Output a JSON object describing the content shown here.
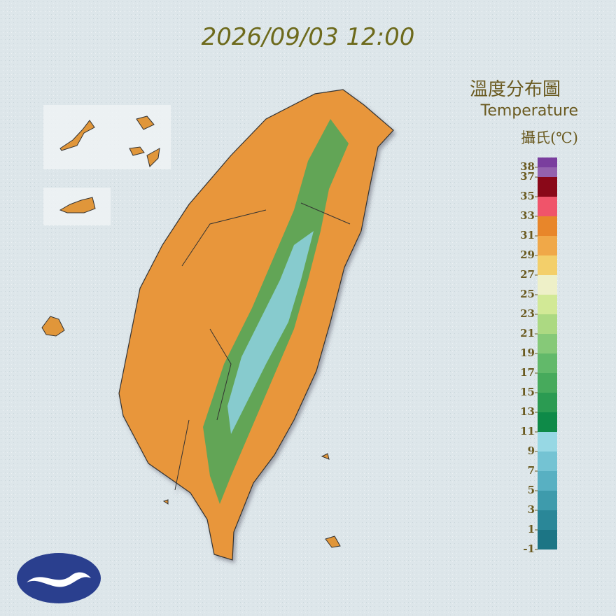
{
  "timestamp": "2026/09/03 12:00",
  "legend": {
    "title": "溫度分布圖",
    "subtitle": "Temperature",
    "unit": "攝氏(℃)",
    "range": [
      -1,
      39
    ],
    "ticks": [
      38,
      37,
      35,
      33,
      31,
      29,
      27,
      25,
      23,
      21,
      19,
      17,
      15,
      13,
      11,
      9,
      7,
      5,
      3,
      1,
      -1
    ],
    "levels": [
      -1,
      1,
      3,
      5,
      7,
      9,
      11,
      13,
      15,
      17,
      19,
      21,
      23,
      25,
      27,
      29,
      31,
      33,
      35,
      37,
      38
    ],
    "colors": [
      "#1c7585",
      "#2a8798",
      "#3e9bac",
      "#58b0c2",
      "#74c3d3",
      "#97d8e4",
      "#0e8a48",
      "#2b9b52",
      "#47aa5c",
      "#62b96a",
      "#86c978",
      "#acd982",
      "#d2e996",
      "#eef0c8",
      "#f3cf6a",
      "#f0a848",
      "#e8862a",
      "#f0546a",
      "#8a0818",
      "#9462ae",
      "#7a3e9e"
    ]
  }
}
